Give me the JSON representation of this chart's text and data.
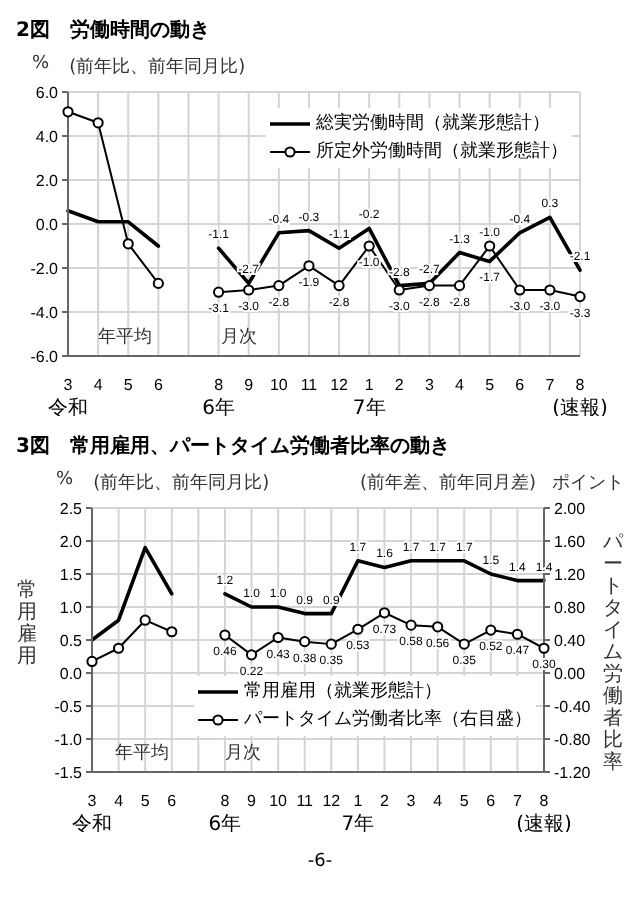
{
  "chart_data": [
    {
      "type": "line",
      "title": "2図　労働時間の動き",
      "categories": [
        "3\n令和",
        "4",
        "5",
        "6",
        null,
        "8\n6年",
        "9",
        "10",
        "11",
        "12",
        "1\n7年",
        "2",
        "3",
        "4",
        "5",
        "6",
        "7",
        "8 (速報)"
      ],
      "series": [
        {
          "name": "総実労働時間（就業形態計）",
          "color": "#000000",
          "marker": "none",
          "values": [
            0.6,
            0.1,
            0.1,
            -1.0,
            null,
            -1.1,
            -2.7,
            -0.4,
            -0.3,
            -1.1,
            -0.2,
            -2.8,
            -2.7,
            -1.3,
            -1.7,
            -0.4,
            0.3,
            -2.1
          ],
          "value_labels": [
            null,
            null,
            null,
            null,
            null,
            "-1.1",
            "-2.7",
            "-0.4",
            "-0.3",
            "-1.1",
            "-0.2",
            "-2.8",
            "-2.7",
            "-1.3",
            "-1.7",
            "-0.4",
            "0.3",
            "-2.1"
          ]
        },
        {
          "name": "所定外労働時間（就業形態計）",
          "color": "#000000",
          "marker": "circle",
          "values": [
            5.1,
            4.6,
            -0.9,
            -2.7,
            null,
            -3.1,
            -3.0,
            -2.8,
            -1.9,
            -2.8,
            -1.0,
            -3.0,
            -2.8,
            -2.8,
            -1.0,
            -3.0,
            -3.0,
            -3.3
          ],
          "value_labels": [
            null,
            null,
            null,
            null,
            null,
            "-3.1",
            "-3.0",
            "-2.8",
            "-1.9",
            "-2.8",
            "-1.0",
            "-3.0",
            "-2.8",
            "-2.8",
            "-1.0",
            "-3.0",
            "-3.0",
            "-3.3"
          ]
        }
      ],
      "ylim": [
        -6,
        6
      ],
      "yticks": [
        {
          "value": 6,
          "label": "6.0"
        },
        {
          "value": 4,
          "label": "4.0"
        },
        {
          "value": 2,
          "label": "2.0"
        },
        {
          "value": 0,
          "label": "0.0"
        },
        {
          "value": -2,
          "label": "-2.0"
        },
        {
          "value": -4,
          "label": "-4.0"
        },
        {
          "value": -6,
          "label": "-6.0"
        }
      ],
      "grid": true,
      "legend": "top right",
      "annotations": [
        "%",
        "(前年比、前年同月比)",
        "年平均",
        "月次"
      ]
    },
    {
      "type": "line",
      "title": "3図　常用雇用、パートタイム労働者比率の動き",
      "ylabel": "常用雇用",
      "y2label": "パートタイム労働者比率",
      "categories": [
        "3\n令和",
        "4",
        "5",
        "6",
        null,
        "8\n6年",
        "9",
        "10",
        "11",
        "12",
        "1\n7年",
        "2",
        "3",
        "4",
        "5",
        "6",
        "7",
        "8 (速報)"
      ],
      "series": [
        {
          "name": "常用雇用（就業形態計）",
          "color": "#000000",
          "marker": "none",
          "values": [
            0.5,
            0.8,
            1.9,
            1.2,
            null,
            1.2,
            1.0,
            1.0,
            0.9,
            0.9,
            1.7,
            1.6,
            1.7,
            1.7,
            1.7,
            1.5,
            1.4,
            1.4
          ],
          "value_labels": [
            null,
            null,
            null,
            null,
            null,
            "1.2",
            "1.0",
            "1.0",
            "0.9",
            "0.9",
            "1.7",
            "1.6",
            "1.7",
            "1.7",
            "1.7",
            "1.5",
            "1.4",
            "1.4"
          ]
        },
        {
          "name": "パートタイム労働者比率（右目盛）",
          "color": "#000000",
          "marker": "circle",
          "axis": "y2",
          "values": [
            0.14,
            0.3,
            0.64,
            0.5,
            null,
            0.46,
            0.22,
            0.43,
            0.38,
            0.35,
            0.53,
            0.73,
            0.58,
            0.56,
            0.35,
            0.52,
            0.47,
            0.3
          ],
          "value_labels": [
            null,
            null,
            null,
            null,
            null,
            "0.46",
            "0.22",
            "0.43",
            "0.38",
            "0.35",
            "0.53",
            "0.73",
            "0.58",
            "0.56",
            "0.35",
            "0.52",
            "0.47",
            "0.30"
          ]
        }
      ],
      "ylim": [
        -1.5,
        2.5
      ],
      "yticks": [
        {
          "value": 2.5,
          "label": "2.5"
        },
        {
          "value": 2,
          "label": "2.0"
        },
        {
          "value": 1.5,
          "label": "1.5"
        },
        {
          "value": 1,
          "label": "1.0"
        },
        {
          "value": 0.5,
          "label": "0.5"
        },
        {
          "value": 0,
          "label": "0.0"
        },
        {
          "value": -0.5,
          "label": "-0.5"
        },
        {
          "value": -1,
          "label": "-1.0"
        },
        {
          "value": -1.5,
          "label": "-1.5"
        }
      ],
      "y2lim": [
        -1.2,
        2.0
      ],
      "y2ticks": [
        {
          "value": 2,
          "label": "2.00"
        },
        {
          "value": 1.6,
          "label": "1.60"
        },
        {
          "value": 1.2,
          "label": "1.20"
        },
        {
          "value": 0.8,
          "label": "0.80"
        },
        {
          "value": 0.4,
          "label": "0.40"
        },
        {
          "value": 0,
          "label": "0.00"
        },
        {
          "value": -0.4,
          "label": "-0.40"
        },
        {
          "value": -0.8,
          "label": "-0.80"
        },
        {
          "value": -1.2,
          "label": "-1.20"
        }
      ],
      "grid": true,
      "legend": "bottom right",
      "annotations": [
        "%",
        "(前年比、前年同月比)",
        "(前年差、前年同月差)",
        "ポイント",
        "年平均",
        "月次",
        "-6-"
      ]
    }
  ]
}
